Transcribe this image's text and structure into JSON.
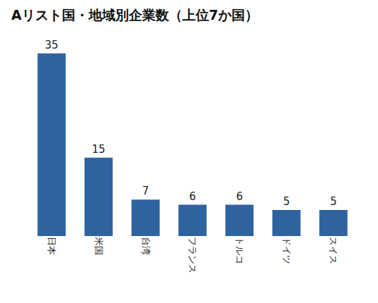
{
  "chart_data": {
    "type": "bar",
    "title": "Aリスト国・地域別企業数（上位7か国）",
    "categories": [
      "日本",
      "米国",
      "台湾",
      "フランス",
      "トルコ",
      "ドイツ",
      "スイス"
    ],
    "values": [
      35,
      15,
      7,
      6,
      6,
      5,
      5
    ],
    "color": "#2e63a0",
    "data_labels": true,
    "tick_labels": "x",
    "grid": false
  }
}
